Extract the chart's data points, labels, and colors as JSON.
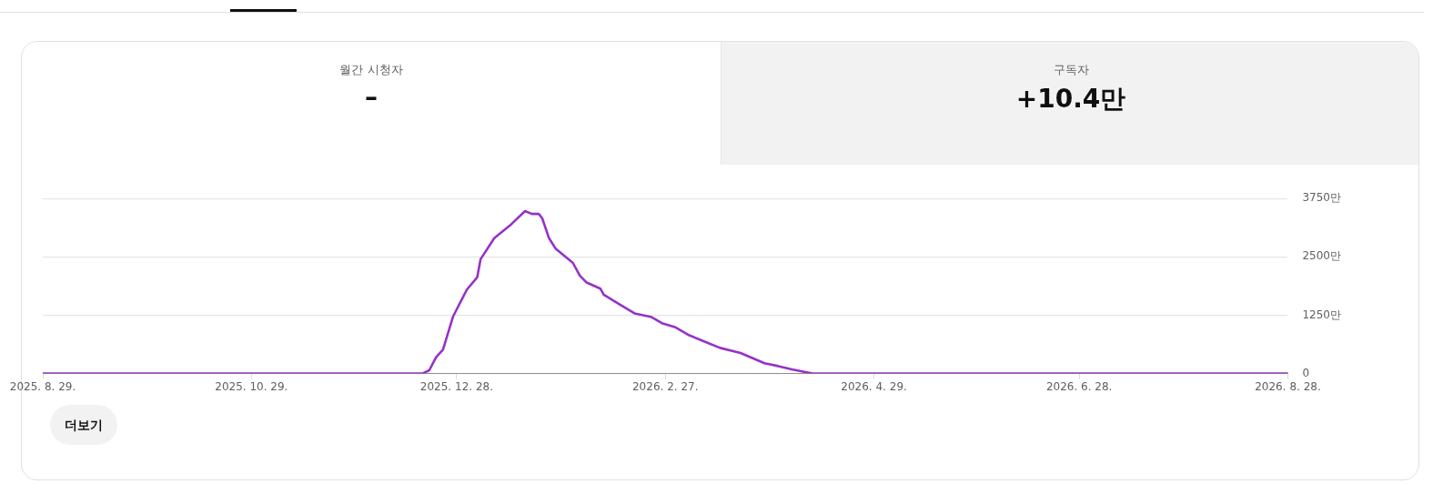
{
  "chart_data": {
    "type": "line",
    "annotations": [
      "월간 시청자",
      "–",
      "구독자",
      "+10.4만",
      "더보기"
    ],
    "series": [
      {
        "color": "#9632c8",
        "x": [
          "2025-08-29",
          "2025-12-18",
          "2025-12-20",
          "2025-12-22",
          "2025-12-24",
          "2025-12-27",
          "2025-12-31",
          "2026-01-03",
          "2026-01-04",
          "2026-01-08",
          "2026-01-13",
          "2026-01-17",
          "2026-01-19",
          "2026-01-21",
          "2026-01-22",
          "2026-01-24",
          "2026-01-26",
          "2026-01-31",
          "2026-02-02",
          "2026-02-04",
          "2026-02-08",
          "2026-02-09",
          "2026-02-13",
          "2026-02-16",
          "2026-02-18",
          "2026-02-23",
          "2026-02-26",
          "2026-03-02",
          "2026-03-06",
          "2026-03-10",
          "2026-03-15",
          "2026-03-21",
          "2026-03-28",
          "2026-04-01",
          "2026-04-05",
          "2026-04-11",
          "2026-08-28"
        ],
        "values": [
          0,
          0,
          70,
          350,
          510,
          1230,
          1800,
          2060,
          2450,
          2900,
          3200,
          3480,
          3420,
          3420,
          3330,
          2900,
          2670,
          2370,
          2100,
          1950,
          1820,
          1690,
          1510,
          1380,
          1290,
          1210,
          1080,
          990,
          820,
          700,
          550,
          440,
          220,
          160,
          90,
          0,
          0
        ]
      }
    ],
    "xlim": [
      "2025-08-29",
      "2026-08-28"
    ],
    "xticks": [
      {
        "value": "2025-08-29",
        "label": "2025. 8. 29."
      },
      {
        "value": "2025-10-29",
        "label": "2025. 10. 29."
      },
      {
        "value": "2025-12-28",
        "label": "2025. 12. 28."
      },
      {
        "value": "2026-02-27",
        "label": "2026. 2. 27."
      },
      {
        "value": "2026-04-29",
        "label": "2026. 4. 29."
      },
      {
        "value": "2026-06-28",
        "label": "2026. 6. 28."
      },
      {
        "value": "2026-08-28",
        "label": "2026. 8. 28."
      }
    ],
    "ylim": [
      0,
      3750
    ],
    "yticks": [
      0,
      {
        "value": 1250,
        "label": "1250만"
      },
      {
        "value": 2500,
        "label": "2500만"
      },
      {
        "value": 3750,
        "label": "3750만"
      }
    ],
    "grid": "y",
    "legend": false,
    "marker": "none",
    "line_style": "solid"
  }
}
